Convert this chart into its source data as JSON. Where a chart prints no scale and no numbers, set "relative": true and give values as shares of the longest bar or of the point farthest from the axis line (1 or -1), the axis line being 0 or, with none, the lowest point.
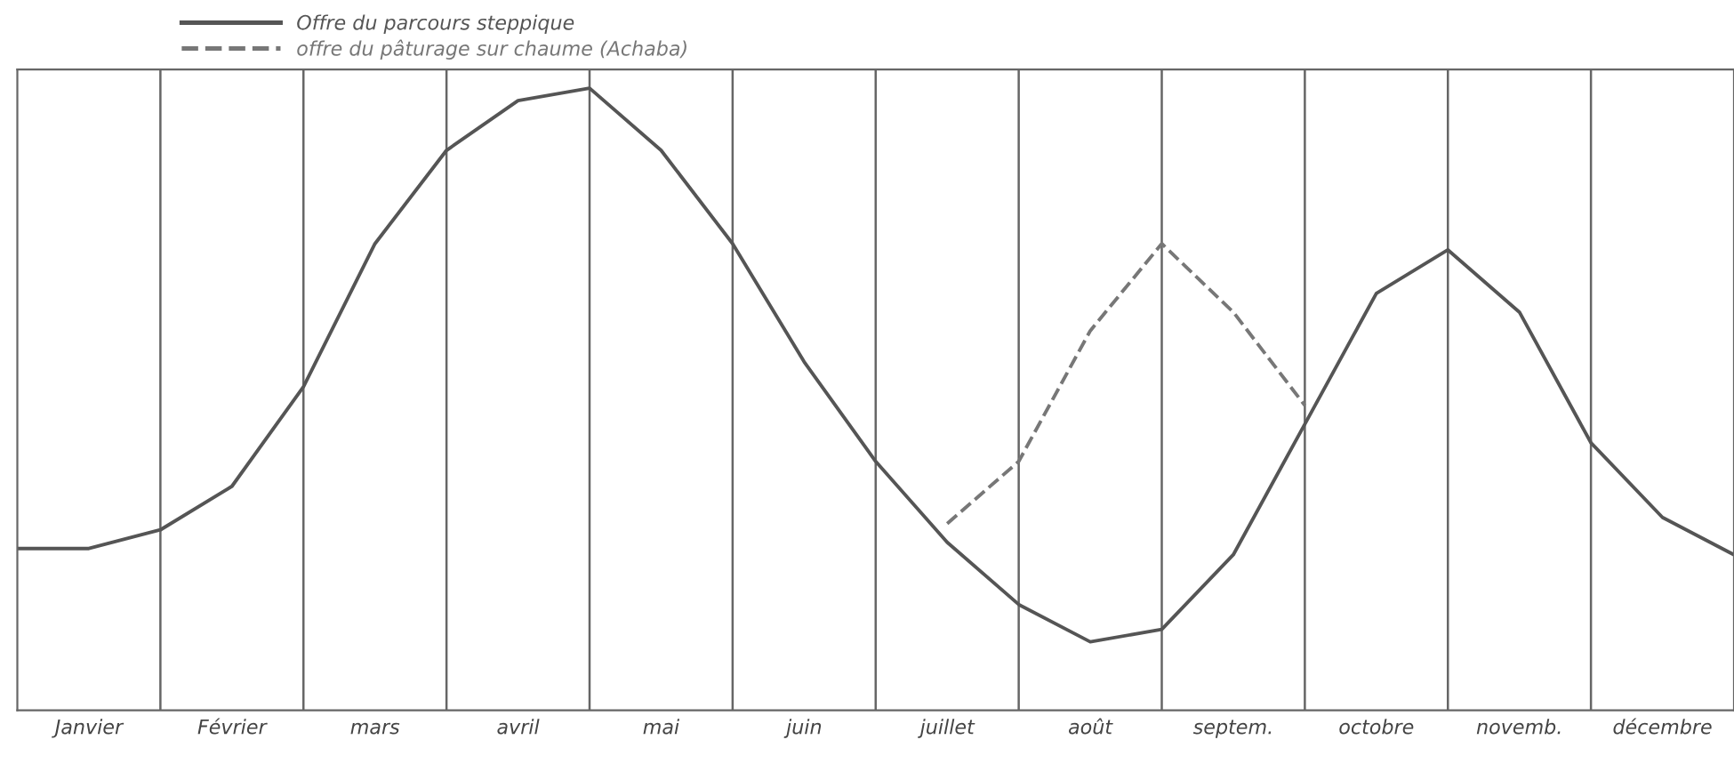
{
  "chart_data": {
    "type": "line",
    "relative": true,
    "categories": [
      null,
      "Janvier",
      null,
      "Février",
      null,
      "mars",
      null,
      "avril",
      null,
      "mai",
      null,
      "juin",
      null,
      "juillet",
      null,
      "août",
      null,
      "septem.",
      null,
      "octobre",
      null,
      "novemb.",
      null,
      "décembre",
      null
    ],
    "series": [
      {
        "name": "Offre du parcours steppique",
        "color": "#555555",
        "line_style": "solid",
        "values": [
          0.26,
          0.26,
          0.29,
          0.36,
          0.52,
          0.75,
          0.9,
          0.98,
          1.0,
          0.9,
          0.75,
          0.56,
          0.4,
          0.27,
          0.17,
          0.11,
          0.13,
          0.25,
          0.46,
          0.67,
          0.74,
          0.64,
          0.43,
          0.31,
          0.25
        ]
      },
      {
        "name": "offre du pâturage sur chaume (Achaba)",
        "color": "#777777",
        "line_style": "dashed",
        "values": [
          null,
          null,
          null,
          null,
          null,
          null,
          null,
          null,
          null,
          null,
          null,
          null,
          null,
          0.3,
          0.4,
          0.61,
          0.75,
          0.64,
          0.49,
          null,
          null,
          null,
          null,
          null,
          null
        ]
      }
    ],
    "grid": "x",
    "legend": "top left",
    "marker": "none"
  }
}
